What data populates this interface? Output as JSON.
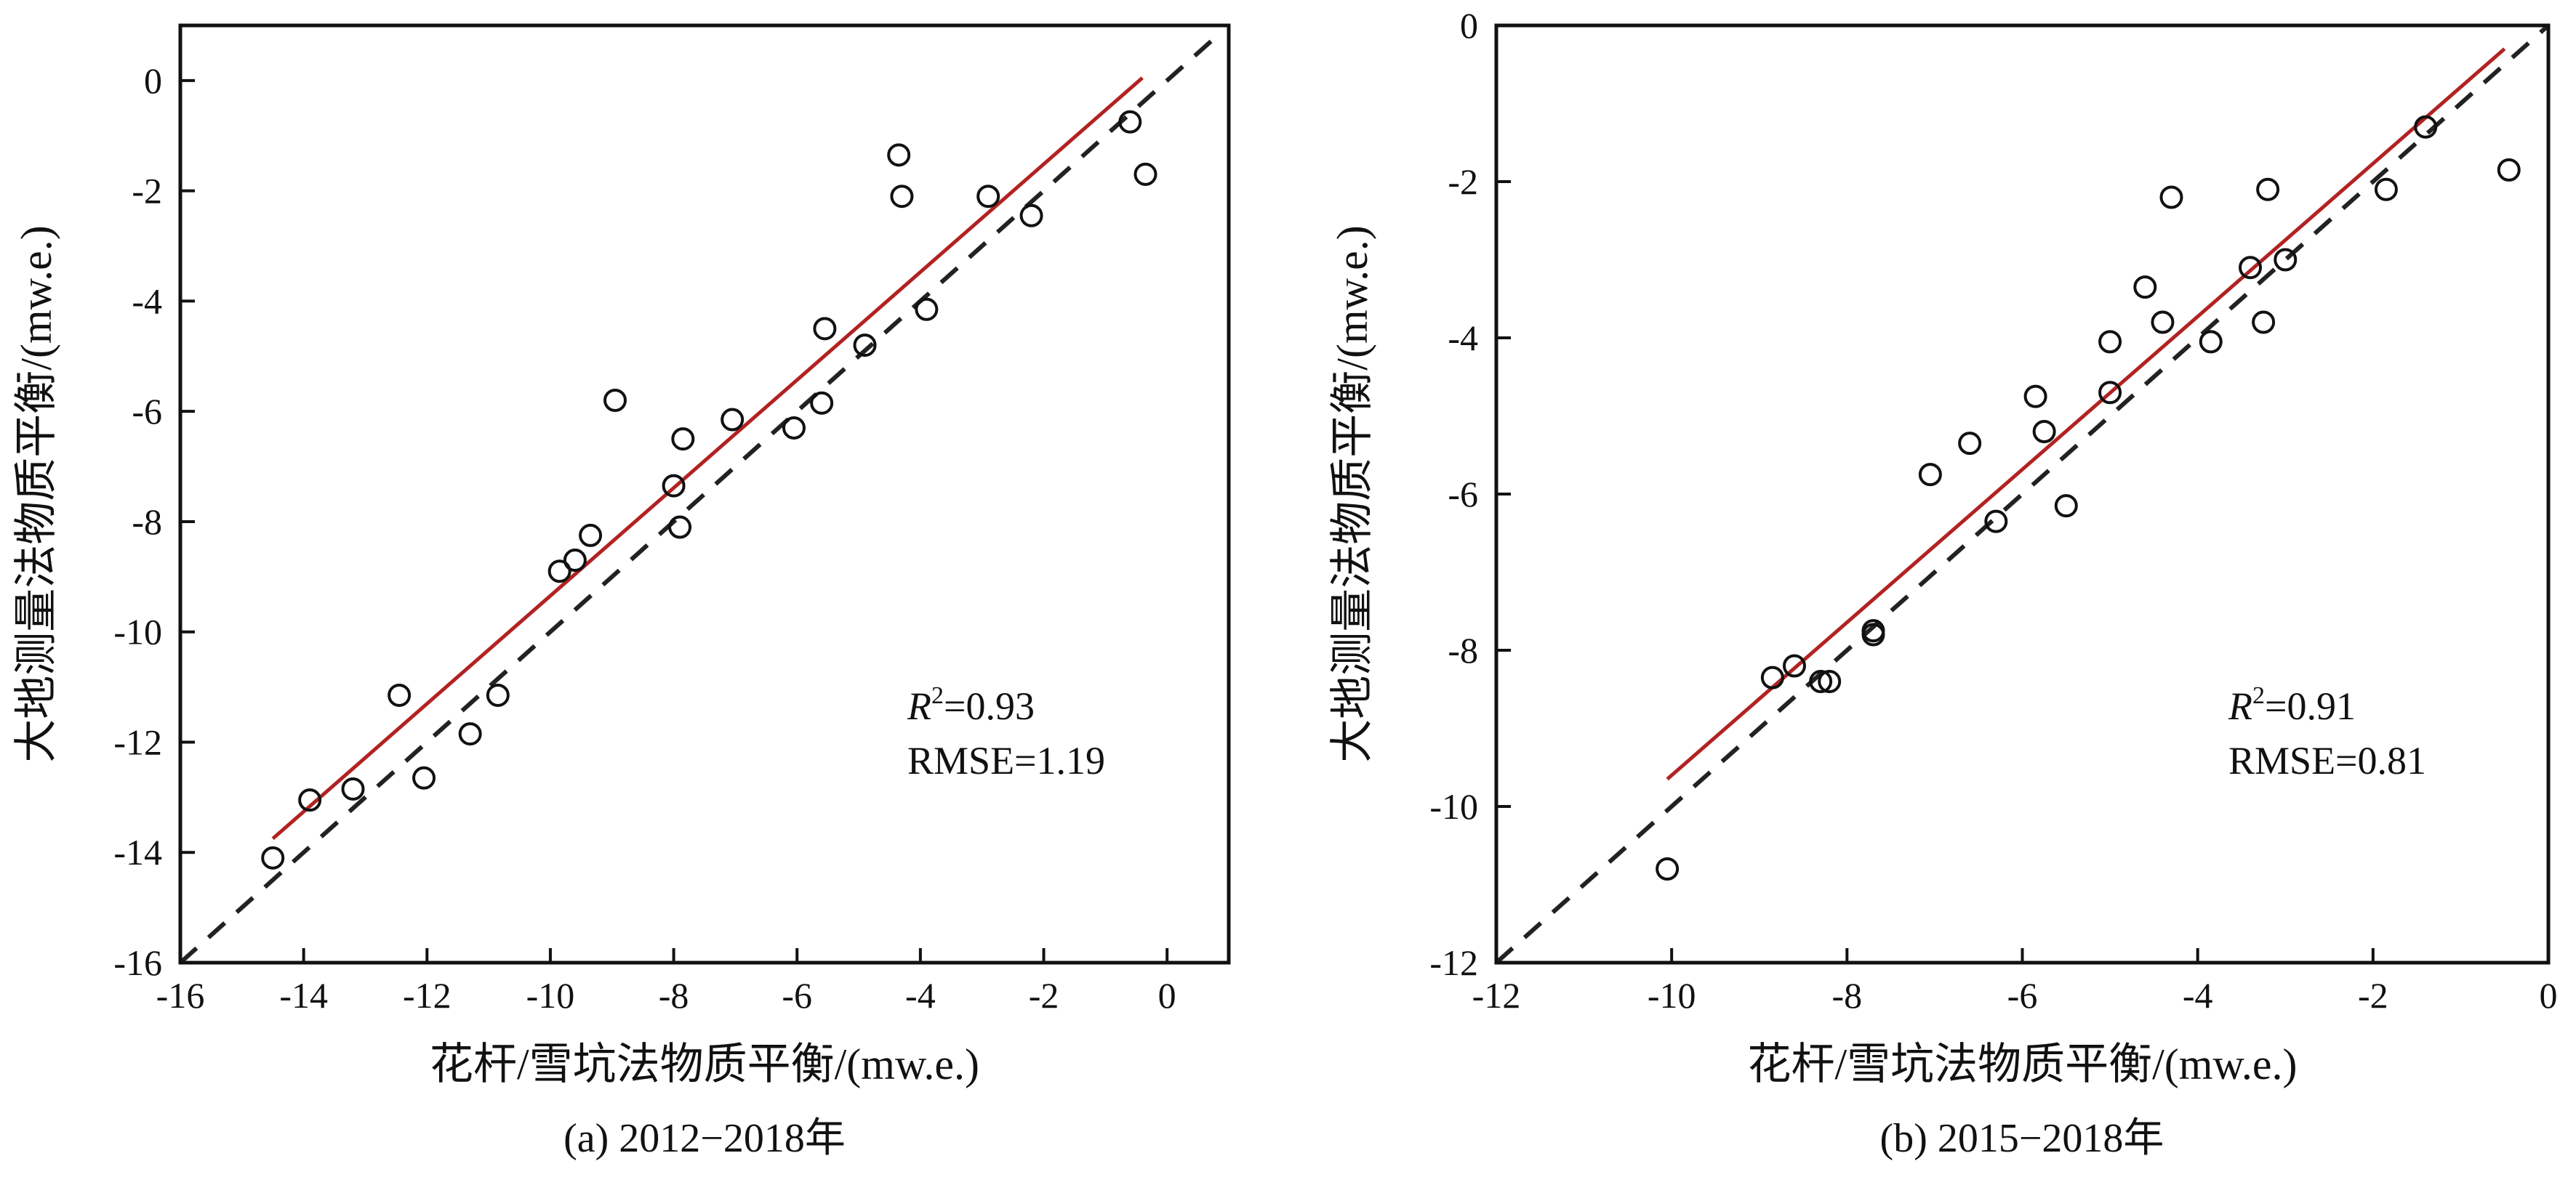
{
  "chart_data": [
    {
      "type": "scatter",
      "caption": "(a) 2012−2018年",
      "xlabel": "花杆/雪坑法物质平衡/(mw.e.)",
      "ylabel": "大地测量法物质平衡/(mw.e.)",
      "xlim": [
        -16,
        1
      ],
      "ylim": [
        -16,
        1
      ],
      "xticks": [
        -16,
        -14,
        -12,
        -10,
        -8,
        -6,
        -4,
        -2,
        0
      ],
      "yticks": [
        -16,
        -14,
        -12,
        -10,
        -8,
        -6,
        -4,
        -2,
        0
      ],
      "xtick_labels": [
        "-16",
        "-14",
        "-12",
        "-10",
        "-8",
        "-6",
        "-4",
        "-2",
        "0"
      ],
      "ytick_labels": [
        "-16",
        "-14",
        "-12",
        "-10",
        "-8",
        "-6",
        "-4",
        "-2",
        "0"
      ],
      "grid": false,
      "stats": {
        "r2_prefix": "R",
        "r2_sup": "2",
        "r2_value": "=0.93",
        "rmse": "RMSE=1.19"
      },
      "points": [
        [
          -14.5,
          -14.1
        ],
        [
          -13.9,
          -13.05
        ],
        [
          -13.2,
          -12.85
        ],
        [
          -12.45,
          -11.15
        ],
        [
          -12.05,
          -12.65
        ],
        [
          -11.3,
          -11.85
        ],
        [
          -10.85,
          -11.15
        ],
        [
          -9.85,
          -8.9
        ],
        [
          -9.6,
          -8.7
        ],
        [
          -9.35,
          -8.25
        ],
        [
          -8.95,
          -5.8
        ],
        [
          -8.0,
          -7.35
        ],
        [
          -7.9,
          -8.1
        ],
        [
          -7.85,
          -6.5
        ],
        [
          -7.05,
          -6.15
        ],
        [
          -6.05,
          -6.3
        ],
        [
          -5.6,
          -5.85
        ],
        [
          -5.55,
          -4.5
        ],
        [
          -4.9,
          -4.8
        ],
        [
          -4.35,
          -1.35
        ],
        [
          -4.3,
          -2.1
        ],
        [
          -3.9,
          -4.15
        ],
        [
          -2.9,
          -2.1
        ],
        [
          -2.2,
          -2.45
        ],
        [
          -0.6,
          -0.75
        ],
        [
          -0.35,
          -1.7
        ]
      ],
      "identity_line": {
        "from": -16,
        "to": 0.9,
        "color": "#222222"
      },
      "fit_line": {
        "x0": -14.5,
        "y0": -13.75,
        "x1": -0.4,
        "y1": 0.05,
        "color": "#b22222"
      }
    },
    {
      "type": "scatter",
      "caption": "(b) 2015−2018年",
      "xlabel": "花杆/雪坑法物质平衡/(mw.e.)",
      "ylabel": "大地测量法物质平衡/(mw.e.)",
      "xlim": [
        -12,
        0
      ],
      "ylim": [
        -12,
        0
      ],
      "xticks": [
        -12,
        -10,
        -8,
        -6,
        -4,
        -2,
        0
      ],
      "yticks": [
        -12,
        -10,
        -8,
        -6,
        -4,
        -2,
        0
      ],
      "xtick_labels": [
        "-12",
        "-10",
        "-8",
        "-6",
        "-4",
        "-2",
        "0"
      ],
      "ytick_labels": [
        "-12",
        "-10",
        "-8",
        "-6",
        "-4",
        "-2",
        "0"
      ],
      "grid": false,
      "stats": {
        "r2_prefix": "R",
        "r2_sup": "2",
        "r2_value": "=0.91",
        "rmse": "RMSE=0.81"
      },
      "points": [
        [
          -10.05,
          -10.8
        ],
        [
          -8.85,
          -8.35
        ],
        [
          -8.6,
          -8.2
        ],
        [
          -8.3,
          -8.4
        ],
        [
          -8.2,
          -8.4
        ],
        [
          -7.7,
          -7.8
        ],
        [
          -7.7,
          -7.75
        ],
        [
          -7.05,
          -5.75
        ],
        [
          -6.6,
          -5.35
        ],
        [
          -6.3,
          -6.35
        ],
        [
          -5.85,
          -4.75
        ],
        [
          -5.75,
          -5.2
        ],
        [
          -5.5,
          -6.15
        ],
        [
          -5.0,
          -4.7
        ],
        [
          -5.0,
          -4.05
        ],
        [
          -4.6,
          -3.35
        ],
        [
          -4.4,
          -3.8
        ],
        [
          -4.3,
          -2.2
        ],
        [
          -3.85,
          -4.05
        ],
        [
          -3.4,
          -3.1
        ],
        [
          -3.25,
          -3.8
        ],
        [
          -3.2,
          -2.1
        ],
        [
          -3.0,
          -3.0
        ],
        [
          -1.85,
          -2.1
        ],
        [
          -1.4,
          -1.3
        ],
        [
          -0.45,
          -1.85
        ]
      ],
      "identity_line": {
        "from": -12,
        "to": 0,
        "color": "#222222"
      },
      "fit_line": {
        "x0": -10.05,
        "y0": -9.65,
        "x1": -0.5,
        "y1": -0.3,
        "color": "#b22222"
      }
    }
  ]
}
